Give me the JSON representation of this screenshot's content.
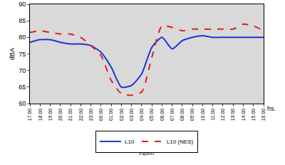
{
  "chart_data": {
    "type": "line",
    "ylabel": "dBA",
    "xlabel": "hs.",
    "caption": "Figure1",
    "categories": [
      "17:00",
      "18:00",
      "19:00",
      "20:00",
      "21:00",
      "22:00",
      "23:00",
      "00:00",
      "01:00",
      "02:00",
      "03:00",
      "04:00",
      "05:00",
      "06:00",
      "07:00",
      "08:00",
      "09:00",
      "10:00",
      "11:00",
      "12:00",
      "13:00",
      "14:00",
      "15:00",
      "16:00"
    ],
    "series": [
      {
        "name": "L10",
        "color": "#1f35d6",
        "line_style": "solid",
        "values": [
          78.5,
          79.3,
          79.3,
          78.5,
          78,
          78,
          77.5,
          75.5,
          71,
          65,
          65.5,
          69,
          77,
          80,
          76.5,
          79,
          80,
          80.5,
          80,
          80,
          80,
          80,
          80,
          80
        ]
      },
      {
        "name": "L10 (NES)",
        "color": "#e0201e",
        "line_style": "dash",
        "values": [
          81.5,
          82,
          81.5,
          81,
          81,
          80,
          77.5,
          74.5,
          67,
          63,
          62.5,
          63.5,
          74,
          83.5,
          83,
          82,
          82.5,
          82.5,
          82.5,
          82.5,
          82.5,
          84,
          83.5,
          82
        ]
      }
    ],
    "ylim": [
      60,
      90
    ],
    "yticks": [
      60,
      65,
      70,
      75,
      80,
      85,
      90
    ],
    "grid": false,
    "legend": "bottom"
  }
}
